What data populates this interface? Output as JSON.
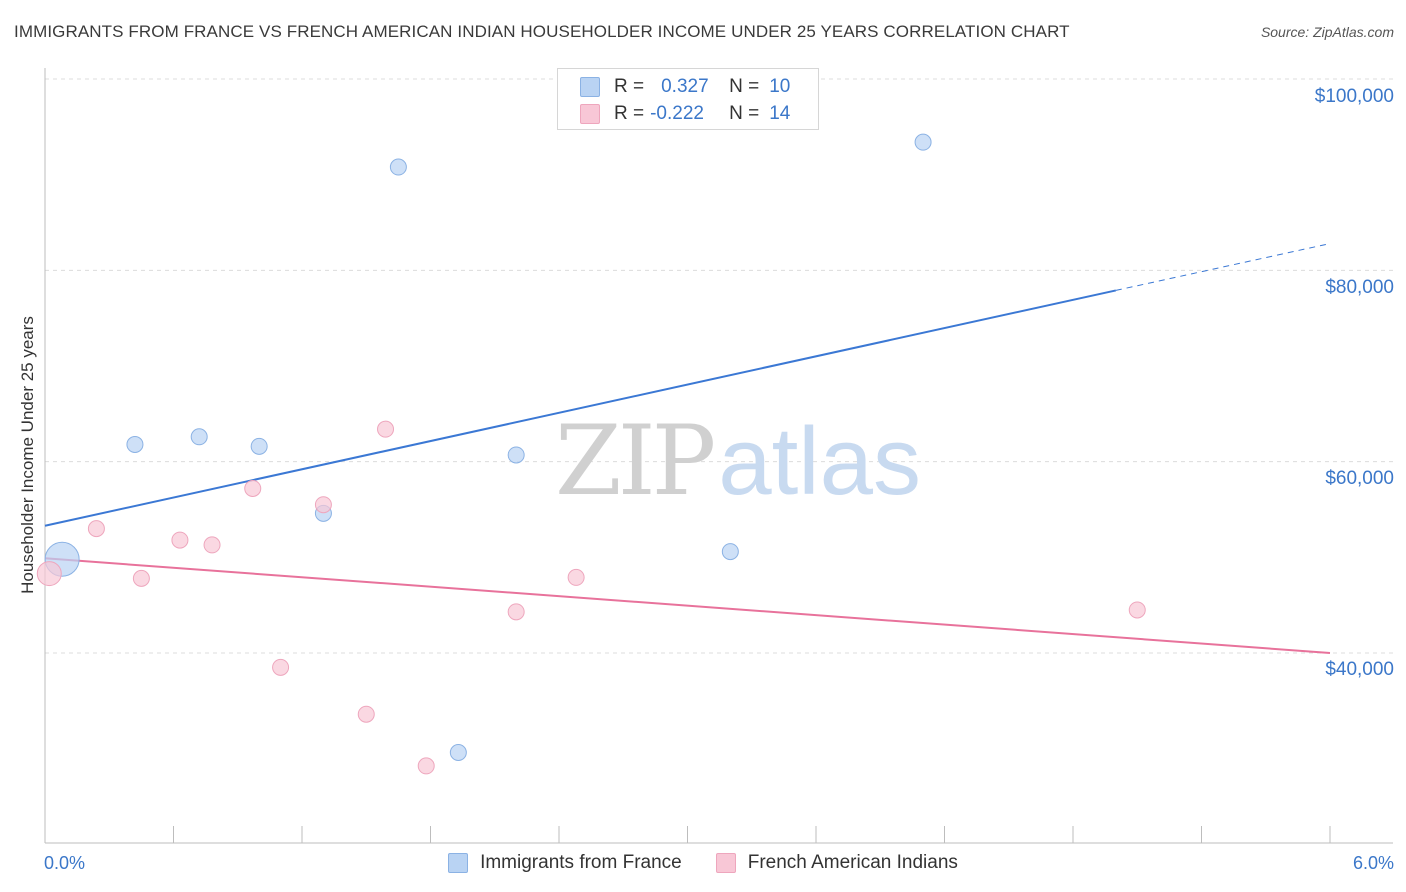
{
  "chart_data": {
    "type": "scatter",
    "title": "IMMIGRANTS FROM FRANCE VS FRENCH AMERICAN INDIAN HOUSEHOLDER INCOME UNDER 25 YEARS CORRELATION CHART",
    "source": "Source: ZipAtlas.com",
    "ylabel": "Householder Income Under 25 years",
    "xlabel": "",
    "xlim": [
      0,
      6
    ],
    "ylim": [
      22000,
      103000
    ],
    "x_tick_labels": {
      "min": "0.0%",
      "max": "6.0%"
    },
    "y_ticks": [
      {
        "value": 100000,
        "label": "$100,000"
      },
      {
        "value": 80000,
        "label": "$80,000"
      },
      {
        "value": 60000,
        "label": "$60,000"
      },
      {
        "value": 40000,
        "label": "$40,000"
      }
    ],
    "series": [
      {
        "name": "Immigrants from France",
        "color": "#3b78d4",
        "fill": "#b9d3f3",
        "stroke": "#8bb2e4",
        "R": "0.327",
        "N": "10",
        "points": [
          {
            "x": 0.08,
            "y": 49800,
            "size": "large"
          },
          {
            "x": 0.42,
            "y": 61800
          },
          {
            "x": 0.72,
            "y": 62600
          },
          {
            "x": 1.0,
            "y": 61600
          },
          {
            "x": 1.3,
            "y": 54600
          },
          {
            "x": 1.65,
            "y": 90800
          },
          {
            "x": 2.2,
            "y": 60700
          },
          {
            "x": 1.93,
            "y": 29600
          },
          {
            "x": 3.2,
            "y": 50600
          },
          {
            "x": 4.1,
            "y": 93400
          }
        ],
        "trend": {
          "x0": 0,
          "y0": 53300,
          "x1": 5.0,
          "y1": 77900,
          "dash_to_x": 6.0,
          "dash_to_y": 82800
        }
      },
      {
        "name": "French American Indians",
        "color": "#e8729b",
        "fill": "#f8c7d6",
        "stroke": "#eea6bd",
        "R": "-0.222",
        "N": "14",
        "points": [
          {
            "x": 0.02,
            "y": 48300,
            "size": "medium"
          },
          {
            "x": 0.24,
            "y": 53000
          },
          {
            "x": 0.45,
            "y": 47800
          },
          {
            "x": 0.63,
            "y": 51800
          },
          {
            "x": 0.78,
            "y": 51300
          },
          {
            "x": 0.97,
            "y": 57200
          },
          {
            "x": 1.1,
            "y": 38500
          },
          {
            "x": 1.3,
            "y": 55500
          },
          {
            "x": 1.5,
            "y": 33600
          },
          {
            "x": 1.59,
            "y": 63400
          },
          {
            "x": 1.78,
            "y": 28200
          },
          {
            "x": 2.2,
            "y": 44300
          },
          {
            "x": 2.48,
            "y": 47900
          },
          {
            "x": 5.1,
            "y": 44500
          }
        ],
        "trend": {
          "x0": 0.0,
          "y0": 49900,
          "x1": 6.0,
          "y1": 40000
        }
      }
    ],
    "legend_labels": {
      "r": "R =",
      "n": "N ="
    },
    "watermark": {
      "zip": "ZIP",
      "atlas": "atlas"
    }
  }
}
